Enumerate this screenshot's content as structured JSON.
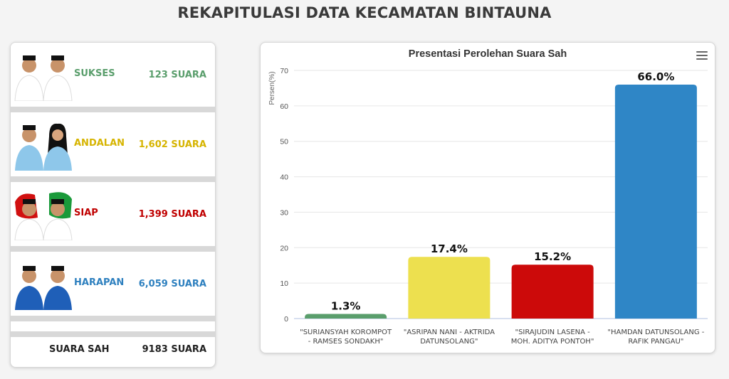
{
  "header": {
    "title": "REKAPITULASI DATA KECAMATAN BINTAUNA"
  },
  "candidates": [
    {
      "party": "SUKSES",
      "votes": "123 SUARA",
      "color": "#5a9e6c",
      "shirt": "#ffffff"
    },
    {
      "party": "ANDALAN",
      "votes": "1,602 SUARA",
      "color": "#d6b400",
      "shirt": "#8ec7ea"
    },
    {
      "party": "SIAP",
      "votes": "1,399 SUARA",
      "color": "#c00000",
      "shirt": "#ffffff"
    },
    {
      "party": "HARAPAN",
      "votes": "6,059 SUARA",
      "color": "#2e80bf",
      "shirt": "#1f5fb8"
    }
  ],
  "total": {
    "label": "SUARA SAH",
    "value": "9183 SUARA"
  },
  "chart_data": {
    "type": "bar",
    "title": "Presentasi Perolehan Suara Sah",
    "ylabel": "Persen(%)",
    "ylim": [
      0,
      70
    ],
    "yticks": [
      0,
      10,
      20,
      30,
      40,
      50,
      60,
      70
    ],
    "categories": [
      [
        "\"SURIANSYAH KOROMPOT",
        "- RAMSES SONDAKH\""
      ],
      [
        "\"ASRIPAN NANI - AKTRIDA",
        "DATUNSOLANG\""
      ],
      [
        "\"SIRAJUDIN LASENA -",
        "MOH. ADITYA PONTOH\""
      ],
      [
        "\"HAMDAN DATUNSOLANG -",
        "RAFIK PANGAU\""
      ]
    ],
    "values": [
      1.3,
      17.4,
      15.2,
      66.0
    ],
    "data_labels": [
      "1.3%",
      "17.4%",
      "15.2%",
      "66.0%"
    ],
    "colors": [
      "#5a9e6c",
      "#ede04f",
      "#cc0a0a",
      "#2f86c6"
    ],
    "grid": true,
    "legend": "none"
  }
}
